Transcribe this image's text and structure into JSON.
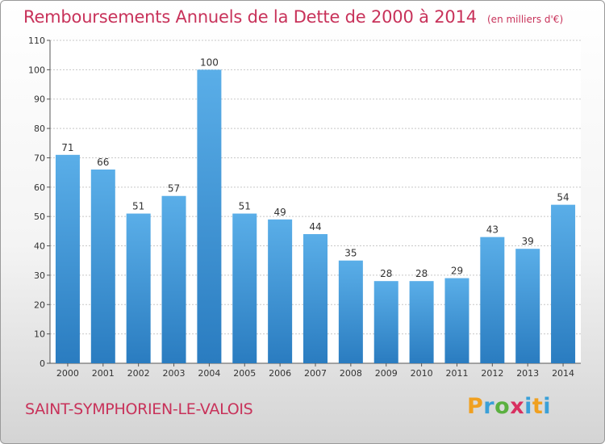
{
  "header": {
    "title": "Remboursements Annuels de la Dette de 2000 à 2014",
    "unit": "(en milliers d'€)"
  },
  "footer": {
    "commune": "SAINT-SYMPHORIEN-LE-VALOIS",
    "logo_text": "Proxiti"
  },
  "colors": {
    "title": "#c8325a",
    "bar_top": "#5aaee8",
    "bar_bottom": "#2a7cc0"
  },
  "chart_data": {
    "type": "bar",
    "title": "Remboursements Annuels de la Dette de 2000 à 2014",
    "xlabel": "",
    "ylabel": "",
    "categories": [
      "2000",
      "2001",
      "2002",
      "2003",
      "2004",
      "2005",
      "2006",
      "2007",
      "2008",
      "2009",
      "2010",
      "2011",
      "2012",
      "2013",
      "2014"
    ],
    "values": [
      71,
      66,
      51,
      57,
      100,
      51,
      49,
      44,
      35,
      28,
      28,
      29,
      43,
      39,
      54
    ],
    "ylim": [
      0,
      110
    ],
    "yticks": [
      0,
      10,
      20,
      30,
      40,
      50,
      60,
      70,
      80,
      90,
      100,
      110
    ],
    "grid": true,
    "data_labels": true
  }
}
